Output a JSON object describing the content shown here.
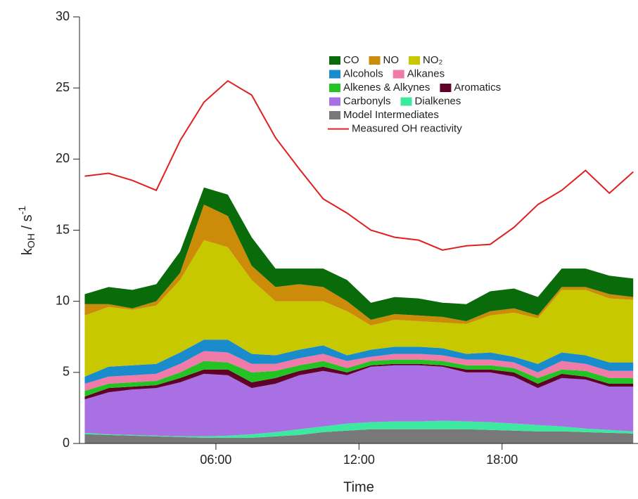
{
  "chart_data": {
    "type": "stacked-area",
    "x_label": "Time",
    "y_label": [
      "k",
      "OH",
      " / s",
      "-1"
    ],
    "x": [
      0.5,
      1.5,
      2.5,
      3.5,
      4.5,
      5.5,
      6.5,
      7.5,
      8.5,
      9.5,
      10.5,
      11.5,
      12.5,
      13.5,
      14.5,
      15.5,
      16.5,
      17.5,
      18.5,
      19.5,
      20.5,
      21.5,
      22.5,
      23.5
    ],
    "xlim": [
      0.28,
      23.7
    ],
    "xticks": [
      {
        "value": 6,
        "label": "06:00"
      },
      {
        "value": 12,
        "label": "12:00"
      },
      {
        "value": 18,
        "label": "18:00"
      }
    ],
    "ylim": [
      0,
      30
    ],
    "yticks": [
      0,
      5,
      10,
      15,
      20,
      25,
      30
    ],
    "series": [
      {
        "name": "Model Intermediates",
        "color": "#787878",
        "values": [
          0.65,
          0.6,
          0.55,
          0.5,
          0.45,
          0.4,
          0.4,
          0.4,
          0.5,
          0.6,
          0.8,
          0.9,
          1.0,
          1.0,
          1.0,
          1.0,
          1.0,
          0.95,
          0.9,
          0.85,
          0.85,
          0.8,
          0.75,
          0.7
        ]
      },
      {
        "name": "Dialkenes",
        "color": "#3de8a0",
        "values": [
          0.1,
          0.05,
          0.05,
          0.05,
          0.05,
          0.1,
          0.15,
          0.25,
          0.3,
          0.4,
          0.4,
          0.5,
          0.5,
          0.55,
          0.55,
          0.6,
          0.55,
          0.55,
          0.5,
          0.45,
          0.35,
          0.25,
          0.2,
          0.15
        ]
      },
      {
        "name": "Carbonyls",
        "color": "#a970e3",
        "values": [
          2.35,
          2.95,
          3.2,
          3.35,
          3.8,
          4.4,
          4.25,
          3.25,
          3.4,
          3.8,
          3.9,
          3.4,
          3.9,
          3.95,
          3.95,
          3.8,
          3.45,
          3.5,
          3.3,
          2.6,
          3.4,
          3.45,
          3.05,
          3.15
        ]
      },
      {
        "name": "Aromatics",
        "color": "#600028",
        "values": [
          0.2,
          0.3,
          0.2,
          0.2,
          0.3,
          0.3,
          0.4,
          0.4,
          0.4,
          0.3,
          0.3,
          0.2,
          0.1,
          0.1,
          0.1,
          0.1,
          0.2,
          0.2,
          0.3,
          0.3,
          0.3,
          0.2,
          0.2,
          0.2
        ]
      },
      {
        "name": "Alkenes & Alkynes",
        "color": "#22c322",
        "values": [
          0.4,
          0.3,
          0.3,
          0.3,
          0.4,
          0.6,
          0.5,
          0.7,
          0.5,
          0.4,
          0.4,
          0.3,
          0.3,
          0.3,
          0.3,
          0.3,
          0.3,
          0.3,
          0.3,
          0.4,
          0.3,
          0.4,
          0.4,
          0.4
        ]
      },
      {
        "name": "Alkanes",
        "color": "#f07aa8",
        "values": [
          0.5,
          0.5,
          0.5,
          0.5,
          0.6,
          0.7,
          0.7,
          0.6,
          0.5,
          0.5,
          0.5,
          0.5,
          0.3,
          0.4,
          0.4,
          0.4,
          0.4,
          0.4,
          0.4,
          0.4,
          0.6,
          0.5,
          0.5,
          0.5
        ]
      },
      {
        "name": "Alcohols",
        "color": "#1a8ccc",
        "values": [
          0.5,
          0.7,
          0.7,
          0.7,
          0.8,
          0.8,
          0.9,
          0.7,
          0.6,
          0.6,
          0.6,
          0.4,
          0.5,
          0.5,
          0.5,
          0.5,
          0.4,
          0.5,
          0.4,
          0.6,
          0.6,
          0.6,
          0.6,
          0.6
        ]
      },
      {
        "name": "NO₂",
        "color": "#c8c800",
        "values": [
          4.3,
          4.2,
          3.9,
          4.1,
          5.1,
          7.0,
          6.5,
          5.2,
          3.8,
          3.4,
          3.1,
          3.1,
          1.7,
          1.9,
          1.8,
          1.8,
          2.1,
          2.6,
          3.1,
          3.2,
          4.4,
          4.6,
          4.5,
          4.4
        ]
      },
      {
        "name": "NO",
        "color": "#cc8c0a",
        "values": [
          0.8,
          0.2,
          0.1,
          0.3,
          0.5,
          2.5,
          2.2,
          1.0,
          1.0,
          1.2,
          1.0,
          0.7,
          0.4,
          0.4,
          0.4,
          0.4,
          0.2,
          0.3,
          0.3,
          0.2,
          0.2,
          0.2,
          0.3,
          0.2
        ]
      },
      {
        "name": "CO",
        "color": "#0a6b0a",
        "values": [
          0.7,
          1.2,
          1.3,
          1.2,
          1.5,
          1.2,
          1.5,
          2.0,
          1.3,
          1.1,
          1.3,
          1.5,
          1.2,
          1.2,
          1.2,
          1.0,
          1.2,
          1.4,
          1.4,
          1.3,
          1.3,
          1.3,
          1.3,
          1.3
        ]
      }
    ],
    "line": {
      "name": "Measured OH reactivity",
      "color": "#e02020",
      "values": [
        18.8,
        19.0,
        18.5,
        17.8,
        21.3,
        24.0,
        25.5,
        24.5,
        21.5,
        19.3,
        17.2,
        16.2,
        15.0,
        14.5,
        14.3,
        13.6,
        13.9,
        14.0,
        15.2,
        16.8,
        17.8,
        19.2,
        17.6,
        19.1
      ]
    }
  }
}
